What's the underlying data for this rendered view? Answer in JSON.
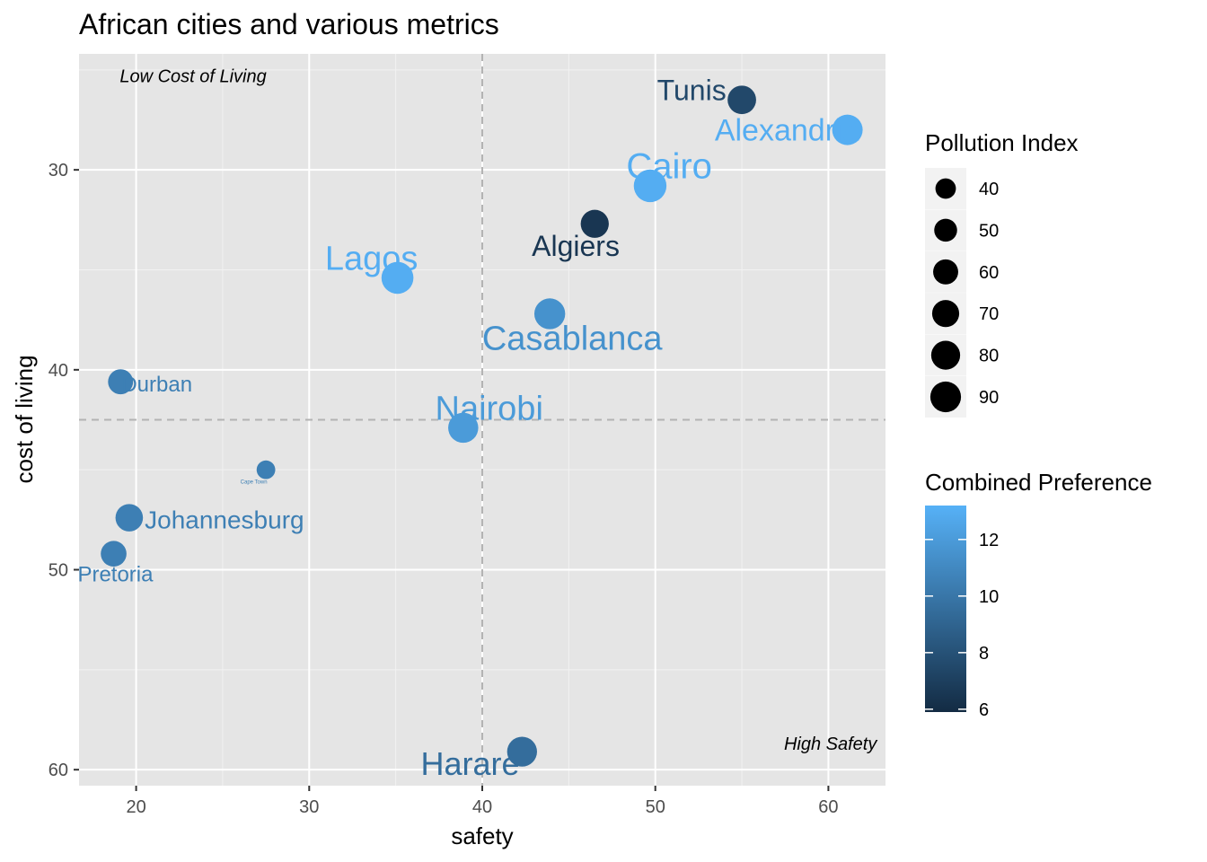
{
  "chart_data": {
    "type": "scatter",
    "title": "African cities and various metrics",
    "xlabel": "safety",
    "ylabel": "cost of living",
    "xlim": [
      16.7,
      63.3
    ],
    "ylim": [
      24.2,
      60.8
    ],
    "y_reversed": true,
    "x_ticks": [
      20,
      30,
      40,
      50,
      60
    ],
    "y_ticks": [
      30,
      40,
      50,
      60
    ],
    "grid": true,
    "reference_lines": {
      "x": 40,
      "y": 42.5
    },
    "annotations": [
      {
        "text": "Low Cost of Living",
        "x": 17.6,
        "y": 25.3
      },
      {
        "text": "High Safety",
        "x": 62.8,
        "y": 58.7
      }
    ],
    "size_legend": {
      "title": "Pollution Index",
      "values": [
        40,
        50,
        60,
        70,
        80,
        90
      ]
    },
    "color_legend": {
      "title": "Combined Preference",
      "ticks": [
        6,
        8,
        10,
        12
      ],
      "range": [
        5.9,
        13.2
      ],
      "low_color": "#132B43",
      "high_color": "#56B1F7"
    },
    "points": [
      {
        "label": "Tunis",
        "x": 55.0,
        "y": 26.5,
        "pollution": 70,
        "preference": 7.5,
        "label_size": 32,
        "label_dx": -2.9,
        "label_dy": -0.5
      },
      {
        "label": "Alexandria",
        "x": 61.1,
        "y": 28.0,
        "pollution": 80,
        "preference": 13.0,
        "label_size": 34,
        "label_dx": -3.5,
        "label_dy": 0.0
      },
      {
        "label": "Cairo",
        "x": 49.7,
        "y": 30.8,
        "pollution": 92,
        "preference": 13.0,
        "label_size": 40,
        "label_dx": 1.1,
        "label_dy": -1.0
      },
      {
        "label": "Algiers",
        "x": 46.5,
        "y": 32.7,
        "pollution": 68,
        "preference": 6.5,
        "label_size": 32,
        "label_dx": -1.1,
        "label_dy": 1.1
      },
      {
        "label": "Lagos",
        "x": 35.1,
        "y": 35.4,
        "pollution": 88,
        "preference": 13.0,
        "label_size": 38,
        "label_dx": -1.5,
        "label_dy": -1.0
      },
      {
        "label": "Casablanca",
        "x": 43.9,
        "y": 37.2,
        "pollution": 82,
        "preference": 11.5,
        "label_size": 38,
        "label_dx": 1.3,
        "label_dy": 1.2
      },
      {
        "label": "Durban",
        "x": 19.1,
        "y": 40.6,
        "pollution": 54,
        "preference": 10.5,
        "label_size": 24,
        "label_dx": 2.1,
        "label_dy": 0.1
      },
      {
        "label": "Nairobi",
        "x": 38.9,
        "y": 42.9,
        "pollution": 78,
        "preference": 12.0,
        "label_size": 38,
        "label_dx": 1.5,
        "label_dy": -1.0
      },
      {
        "label": "Cape Town",
        "x": 27.5,
        "y": 45.0,
        "pollution": 30,
        "preference": 10.5,
        "label_size": 6,
        "label_dx": -0.7,
        "label_dy": 0.6
      },
      {
        "label": "Johannesburg",
        "x": 19.6,
        "y": 47.4,
        "pollution": 65,
        "preference": 10.5,
        "label_size": 28,
        "label_dx": 5.5,
        "label_dy": 0.1
      },
      {
        "label": "Pretoria",
        "x": 18.7,
        "y": 49.2,
        "pollution": 57,
        "preference": 10.5,
        "label_size": 24,
        "label_dx": 0.1,
        "label_dy": 1.0
      },
      {
        "label": "Harare",
        "x": 42.3,
        "y": 59.1,
        "pollution": 77,
        "preference": 9.5,
        "label_size": 36,
        "label_dx": -3.0,
        "label_dy": 0.6
      }
    ]
  }
}
